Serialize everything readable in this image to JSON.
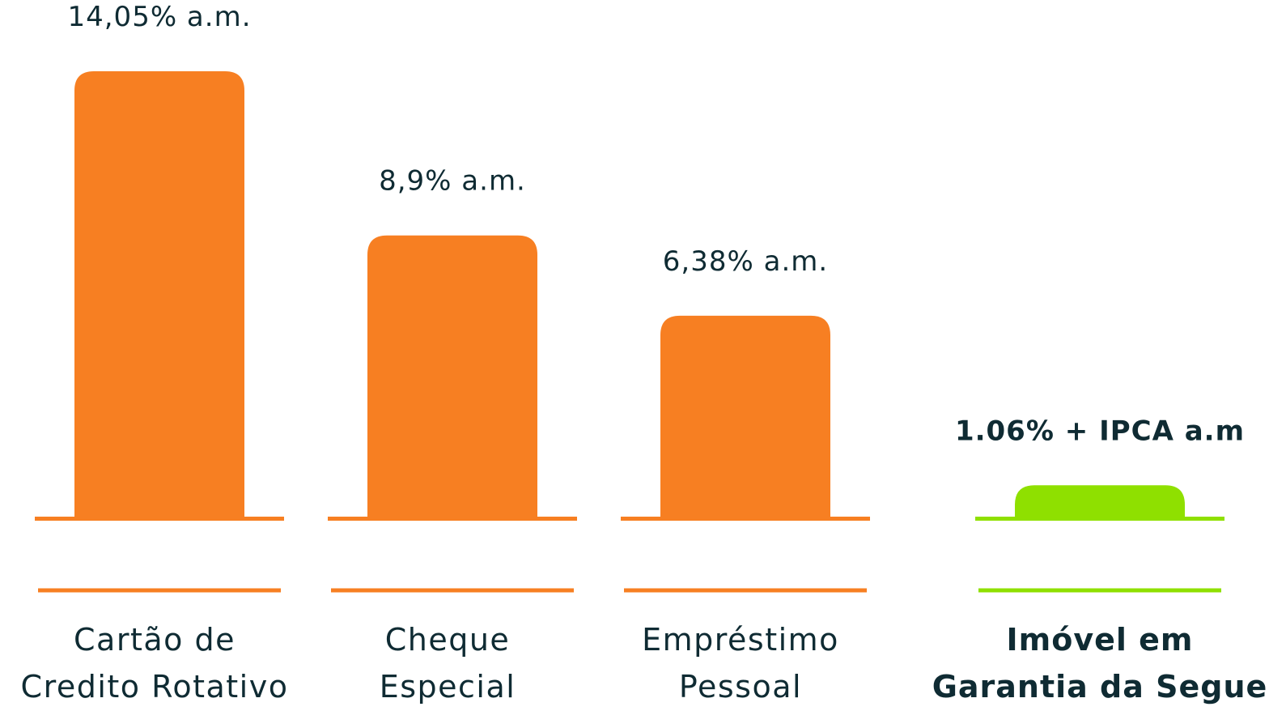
{
  "chart_data": {
    "type": "bar",
    "title": "",
    "xlabel": "",
    "ylabel": "",
    "ylim": [
      0,
      14.05
    ],
    "grid": false,
    "legend": "none",
    "categories": [
      [
        "Cartão de",
        "Credito Rotativo"
      ],
      [
        "Cheque",
        "Especial"
      ],
      [
        "Empréstimo",
        "Pessoal"
      ],
      [
        "Imóvel em",
        "Garantia da Segue"
      ]
    ],
    "values": [
      14.05,
      8.9,
      6.38,
      1.06
    ],
    "value_labels": [
      "14,05% a.m.",
      "8,9% a.m.",
      "6,38% a.m.",
      "1.06% + IPCA a.m"
    ],
    "highlight_index": 3,
    "colors": {
      "default": "#f77f22",
      "highlight": "#8fe000",
      "text": "#0f2b33"
    }
  }
}
